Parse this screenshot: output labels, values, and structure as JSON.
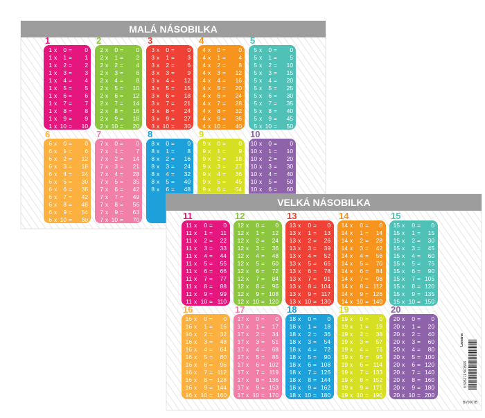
{
  "times": "x",
  "equals": "=",
  "cards": [
    {
      "title": "MALÁ NÁSOBILKA",
      "tables": [
        {
          "number": 1,
          "color": "#e5177e",
          "rows": [
            [
              1,
              0,
              0
            ],
            [
              1,
              1,
              1
            ],
            [
              1,
              2,
              2
            ],
            [
              1,
              3,
              3
            ],
            [
              1,
              4,
              4
            ],
            [
              1,
              5,
              5
            ],
            [
              1,
              6,
              6
            ],
            [
              1,
              7,
              7
            ],
            [
              1,
              8,
              8
            ],
            [
              1,
              9,
              9
            ],
            [
              1,
              10,
              10
            ]
          ]
        },
        {
          "number": 2,
          "color": "#8cc63f",
          "rows": [
            [
              2,
              0,
              0
            ],
            [
              2,
              1,
              2
            ],
            [
              2,
              2,
              4
            ],
            [
              2,
              3,
              6
            ],
            [
              2,
              4,
              8
            ],
            [
              2,
              5,
              10
            ],
            [
              2,
              6,
              12
            ],
            [
              2,
              7,
              14
            ],
            [
              2,
              8,
              16
            ],
            [
              2,
              9,
              18
            ],
            [
              2,
              10,
              20
            ]
          ]
        },
        {
          "number": 3,
          "color": "#ef4136",
          "rows": [
            [
              3,
              0,
              0
            ],
            [
              3,
              1,
              3
            ],
            [
              3,
              2,
              6
            ],
            [
              3,
              3,
              9
            ],
            [
              3,
              4,
              12
            ],
            [
              3,
              5,
              15
            ],
            [
              3,
              6,
              18
            ],
            [
              3,
              7,
              21
            ],
            [
              3,
              8,
              24
            ],
            [
              3,
              9,
              27
            ],
            [
              3,
              10,
              30
            ]
          ]
        },
        {
          "number": 4,
          "color": "#f7941d",
          "rows": [
            [
              4,
              0,
              0
            ],
            [
              4,
              1,
              4
            ],
            [
              4,
              2,
              8
            ],
            [
              4,
              3,
              12
            ],
            [
              4,
              4,
              16
            ],
            [
              4,
              5,
              20
            ],
            [
              4,
              6,
              24
            ],
            [
              4,
              7,
              28
            ],
            [
              4,
              8,
              32
            ],
            [
              4,
              9,
              36
            ],
            [
              4,
              10,
              40
            ]
          ]
        },
        {
          "number": 5,
          "color": "#4fc1b7",
          "rows": [
            [
              5,
              0,
              0
            ],
            [
              5,
              1,
              5
            ],
            [
              5,
              2,
              10
            ],
            [
              5,
              3,
              15
            ],
            [
              5,
              4,
              20
            ],
            [
              5,
              5,
              25
            ],
            [
              5,
              6,
              30
            ],
            [
              5,
              7,
              35
            ],
            [
              5,
              8,
              40
            ],
            [
              5,
              9,
              45
            ],
            [
              5,
              10,
              50
            ]
          ]
        },
        {
          "number": 6,
          "color": "#fbb040",
          "rows": [
            [
              6,
              0,
              0
            ],
            [
              6,
              1,
              6
            ],
            [
              6,
              2,
              12
            ],
            [
              6,
              3,
              18
            ],
            [
              6,
              4,
              24
            ],
            [
              6,
              5,
              30
            ],
            [
              6,
              6,
              36
            ],
            [
              6,
              7,
              42
            ],
            [
              6,
              8,
              48
            ],
            [
              6,
              9,
              54
            ],
            [
              6,
              10,
              60
            ]
          ]
        },
        {
          "number": 7,
          "color": "#f17fa8",
          "rows": [
            [
              7,
              0,
              0
            ],
            [
              7,
              1,
              7
            ],
            [
              7,
              2,
              14
            ],
            [
              7,
              3,
              21
            ],
            [
              7,
              4,
              28
            ],
            [
              7,
              5,
              35
            ],
            [
              7,
              6,
              42
            ],
            [
              7,
              7,
              49
            ],
            [
              7,
              8,
              56
            ],
            [
              7,
              9,
              63
            ],
            [
              7,
              10,
              70
            ]
          ]
        },
        {
          "number": 8,
          "color": "#1ea1db",
          "rows": [
            [
              8,
              0,
              0
            ],
            [
              8,
              1,
              8
            ],
            [
              8,
              2,
              16
            ],
            [
              8,
              3,
              24
            ],
            [
              8,
              4,
              32
            ],
            [
              8,
              5,
              40
            ],
            [
              8,
              6,
              48
            ]
          ]
        },
        {
          "number": 9,
          "color": "#d7df23",
          "rows": [
            [
              9,
              0,
              0
            ],
            [
              9,
              1,
              9
            ],
            [
              9,
              2,
              18
            ],
            [
              9,
              3,
              27
            ],
            [
              9,
              4,
              36
            ],
            [
              9,
              5,
              45
            ],
            [
              9,
              6,
              54
            ]
          ]
        },
        {
          "number": 10,
          "color": "#8e63aa",
          "rows": [
            [
              10,
              0,
              0
            ],
            [
              10,
              1,
              10
            ],
            [
              10,
              2,
              20
            ],
            [
              10,
              3,
              30
            ],
            [
              10,
              4,
              40
            ],
            [
              10,
              5,
              50
            ],
            [
              10,
              6,
              60
            ]
          ]
        }
      ]
    },
    {
      "title": "VELKÁ NÁSOBILKA",
      "tables": [
        {
          "number": 11,
          "color": "#e5177e",
          "rows": [
            [
              11,
              0,
              0
            ],
            [
              11,
              1,
              11
            ],
            [
              11,
              2,
              22
            ],
            [
              11,
              3,
              33
            ],
            [
              11,
              4,
              44
            ],
            [
              11,
              5,
              55
            ],
            [
              11,
              6,
              66
            ],
            [
              11,
              7,
              77
            ],
            [
              11,
              8,
              88
            ],
            [
              11,
              9,
              99
            ],
            [
              11,
              10,
              110
            ]
          ]
        },
        {
          "number": 12,
          "color": "#8cc63f",
          "rows": [
            [
              12,
              0,
              0
            ],
            [
              12,
              1,
              12
            ],
            [
              12,
              2,
              24
            ],
            [
              12,
              3,
              36
            ],
            [
              12,
              4,
              48
            ],
            [
              12,
              5,
              60
            ],
            [
              12,
              6,
              72
            ],
            [
              12,
              7,
              84
            ],
            [
              12,
              8,
              96
            ],
            [
              12,
              9,
              108
            ],
            [
              12,
              10,
              120
            ]
          ]
        },
        {
          "number": 13,
          "color": "#ef4136",
          "rows": [
            [
              13,
              0,
              0
            ],
            [
              13,
              1,
              13
            ],
            [
              13,
              2,
              26
            ],
            [
              13,
              3,
              39
            ],
            [
              13,
              4,
              52
            ],
            [
              13,
              5,
              65
            ],
            [
              13,
              6,
              78
            ],
            [
              13,
              7,
              91
            ],
            [
              13,
              8,
              104
            ],
            [
              13,
              9,
              117
            ],
            [
              13,
              10,
              130
            ]
          ]
        },
        {
          "number": 14,
          "color": "#f7941d",
          "rows": [
            [
              14,
              0,
              0
            ],
            [
              14,
              1,
              14
            ],
            [
              14,
              2,
              28
            ],
            [
              14,
              3,
              42
            ],
            [
              14,
              4,
              56
            ],
            [
              14,
              5,
              70
            ],
            [
              14,
              6,
              84
            ],
            [
              14,
              7,
              98
            ],
            [
              14,
              8,
              112
            ],
            [
              14,
              9,
              126
            ],
            [
              14,
              10,
              140
            ]
          ]
        },
        {
          "number": 15,
          "color": "#4fc1b7",
          "rows": [
            [
              15,
              0,
              0
            ],
            [
              15,
              1,
              15
            ],
            [
              15,
              2,
              30
            ],
            [
              15,
              3,
              45
            ],
            [
              15,
              4,
              60
            ],
            [
              15,
              5,
              75
            ],
            [
              15,
              6,
              90
            ],
            [
              15,
              7,
              105
            ],
            [
              15,
              8,
              120
            ],
            [
              15,
              9,
              135
            ],
            [
              15,
              10,
              150
            ]
          ]
        },
        {
          "number": 16,
          "color": "#fbb040",
          "rows": [
            [
              16,
              0,
              0
            ],
            [
              16,
              1,
              16
            ],
            [
              16,
              2,
              32
            ],
            [
              16,
              3,
              48
            ],
            [
              16,
              4,
              64
            ],
            [
              16,
              5,
              80
            ],
            [
              16,
              6,
              96
            ],
            [
              16,
              7,
              112
            ],
            [
              16,
              8,
              128
            ],
            [
              16,
              9,
              144
            ],
            [
              16,
              10,
              160
            ]
          ]
        },
        {
          "number": 17,
          "color": "#f17fa8",
          "rows": [
            [
              17,
              0,
              0
            ],
            [
              17,
              1,
              17
            ],
            [
              17,
              2,
              34
            ],
            [
              17,
              3,
              51
            ],
            [
              17,
              4,
              68
            ],
            [
              17,
              5,
              85
            ],
            [
              17,
              6,
              102
            ],
            [
              17,
              7,
              119
            ],
            [
              17,
              8,
              136
            ],
            [
              17,
              9,
              153
            ],
            [
              17,
              10,
              170
            ]
          ]
        },
        {
          "number": 18,
          "color": "#1ea1db",
          "rows": [
            [
              18,
              0,
              0
            ],
            [
              18,
              1,
              18
            ],
            [
              18,
              2,
              36
            ],
            [
              18,
              3,
              54
            ],
            [
              18,
              4,
              72
            ],
            [
              18,
              5,
              90
            ],
            [
              18,
              6,
              108
            ],
            [
              18,
              7,
              126
            ],
            [
              18,
              8,
              144
            ],
            [
              18,
              9,
              162
            ],
            [
              18,
              10,
              180
            ]
          ]
        },
        {
          "number": 19,
          "color": "#d7df23",
          "rows": [
            [
              19,
              0,
              0
            ],
            [
              19,
              1,
              19
            ],
            [
              19,
              2,
              38
            ],
            [
              19,
              3,
              57
            ],
            [
              19,
              4,
              76
            ],
            [
              19,
              5,
              95
            ],
            [
              19,
              6,
              114
            ],
            [
              19,
              7,
              133
            ],
            [
              19,
              8,
              152
            ],
            [
              19,
              9,
              171
            ],
            [
              19,
              10,
              190
            ]
          ]
        },
        {
          "number": 20,
          "color": "#8e63aa",
          "rows": [
            [
              20,
              0,
              0
            ],
            [
              20,
              1,
              20
            ],
            [
              20,
              2,
              40
            ],
            [
              20,
              3,
              60
            ],
            [
              20,
              4,
              80
            ],
            [
              20,
              5,
              100
            ],
            [
              20,
              6,
              120
            ],
            [
              20,
              7,
              140
            ],
            [
              20,
              8,
              160
            ],
            [
              20,
              9,
              180
            ],
            [
              20,
              10,
              200
            ]
          ]
        }
      ]
    }
  ],
  "side": {
    "brand": "Lamana",
    "barcode": "8 595271 901568",
    "code": "BV0007B"
  }
}
